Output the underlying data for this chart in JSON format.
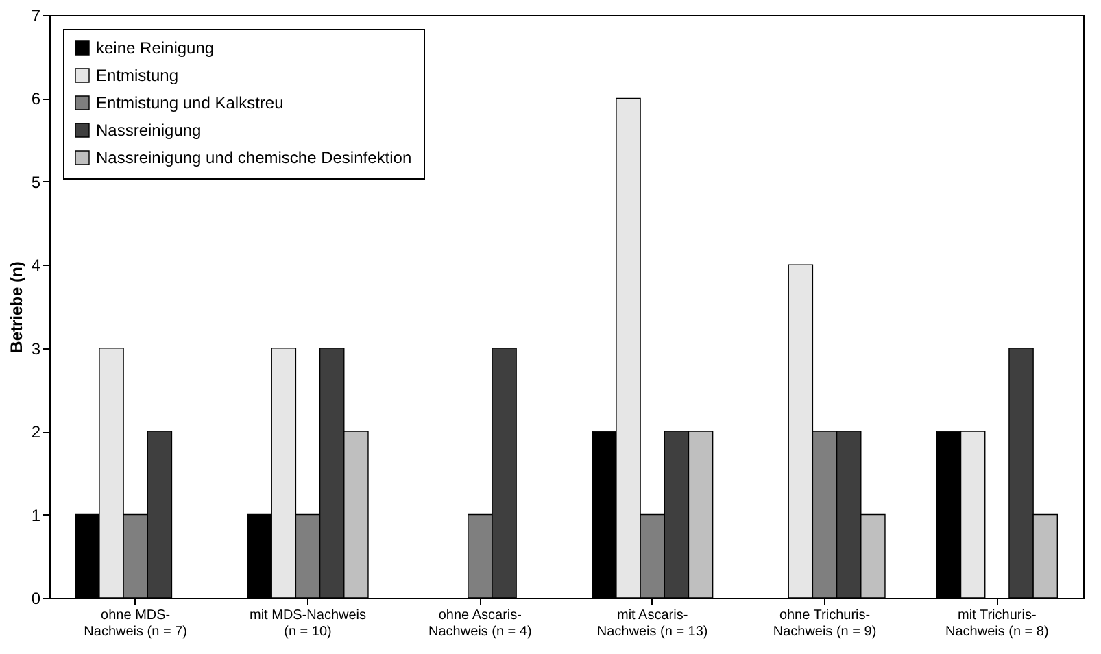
{
  "chart_data": {
    "type": "bar",
    "ylabel": "Betriebe (n)",
    "categories": [
      "ohne MDS-\nNachweis (n = 7)",
      "mit MDS-Nachweis\n(n = 10)",
      "ohne Ascaris-\nNachweis (n = 4)",
      "mit Ascaris-\nNachweis (n = 13)",
      "ohne Trichuris-\nNachweis (n = 9)",
      "mit Trichuris-\nNachweis (n = 8)"
    ],
    "series": [
      {
        "name": "keine Reinigung",
        "color": "#000000",
        "values": [
          1,
          1,
          0,
          2,
          0,
          2
        ]
      },
      {
        "name": "Entmistung",
        "color": "#e6e6e6",
        "values": [
          3,
          3,
          0,
          6,
          4,
          2
        ]
      },
      {
        "name": "Entmistung und Kalkstreu",
        "color": "#7f7f7f",
        "values": [
          1,
          1,
          1,
          1,
          2,
          0
        ]
      },
      {
        "name": "Nassreinigung",
        "color": "#3f3f3f",
        "values": [
          2,
          3,
          3,
          2,
          2,
          3
        ]
      },
      {
        "name": "Nassreinigung und chemische Desinfektion",
        "color": "#bfbfbf",
        "values": [
          0,
          2,
          0,
          2,
          1,
          1
        ]
      }
    ],
    "ylim": [
      0,
      7
    ],
    "yticks": [
      0,
      1,
      2,
      3,
      4,
      5,
      6,
      7
    ],
    "grid": false,
    "legend": "top left"
  }
}
